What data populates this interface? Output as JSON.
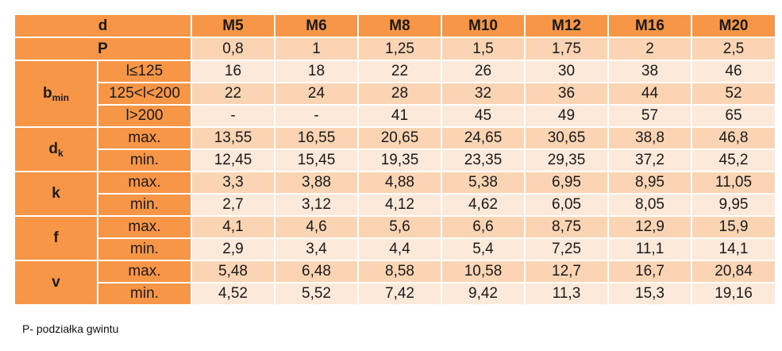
{
  "header": {
    "label": "d",
    "sizes": [
      "M5",
      "M6",
      "M8",
      "M10",
      "M12",
      "M16",
      "M20"
    ]
  },
  "pitch": {
    "label": "P",
    "values": [
      "0,8",
      "1",
      "1,25",
      "1,5",
      "1,75",
      "2",
      "2,5"
    ]
  },
  "groups": [
    {
      "symbol": "b",
      "subscript": "min",
      "rows": [
        {
          "label": "l≤125",
          "values": [
            "16",
            "18",
            "22",
            "26",
            "30",
            "38",
            "46"
          ]
        },
        {
          "label": "125<l<200",
          "values": [
            "22",
            "24",
            "28",
            "32",
            "36",
            "44",
            "52"
          ]
        },
        {
          "label": "l>200",
          "values": [
            "-",
            "-",
            "41",
            "45",
            "49",
            "57",
            "65"
          ]
        }
      ]
    },
    {
      "symbol": "d",
      "subscript": "k",
      "rows": [
        {
          "label": "max.",
          "values": [
            "13,55",
            "16,55",
            "20,65",
            "24,65",
            "30,65",
            "38,8",
            "46,8"
          ]
        },
        {
          "label": "min.",
          "values": [
            "12,45",
            "15,45",
            "19,35",
            "23,35",
            "29,35",
            "37,2",
            "45,2"
          ]
        }
      ]
    },
    {
      "symbol": "k",
      "subscript": "",
      "rows": [
        {
          "label": "max.",
          "values": [
            "3,3",
            "3,88",
            "4,88",
            "5,38",
            "6,95",
            "8,95",
            "11,05"
          ]
        },
        {
          "label": "min.",
          "values": [
            "2,7",
            "3,12",
            "4,12",
            "4,62",
            "6,05",
            "8,05",
            "9,95"
          ]
        }
      ]
    },
    {
      "symbol": "f",
      "subscript": "",
      "rows": [
        {
          "label": "max.",
          "values": [
            "4,1",
            "4,6",
            "5,6",
            "6,6",
            "8,75",
            "12,9",
            "15,9"
          ]
        },
        {
          "label": "min.",
          "values": [
            "2,9",
            "3,4",
            "4,4",
            "5,4",
            "7,25",
            "11,1",
            "14,1"
          ]
        }
      ]
    },
    {
      "symbol": "v",
      "subscript": "",
      "rows": [
        {
          "label": "max.",
          "values": [
            "5,48",
            "6,48",
            "8,58",
            "10,58",
            "12,7",
            "16,7",
            "20,84"
          ]
        },
        {
          "label": "min.",
          "values": [
            "4,52",
            "5,52",
            "7,42",
            "9,42",
            "11,3",
            "15,3",
            "19,16"
          ]
        }
      ]
    }
  ],
  "footnote": "P- podziałka gwintu",
  "colors": {
    "header": "#f79646",
    "row_dark": "#fbd4b4",
    "row_light": "#fde9d9"
  }
}
